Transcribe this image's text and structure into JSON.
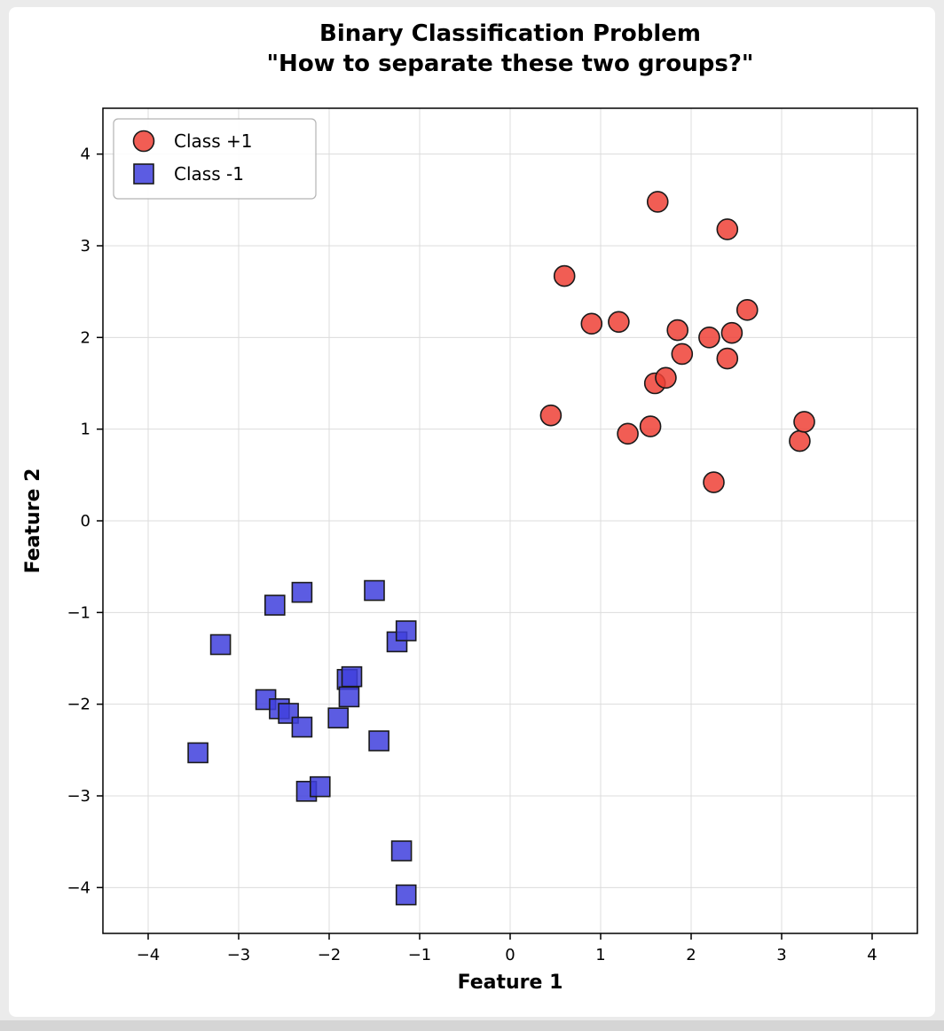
{
  "window": {
    "background": "#ebebeb",
    "figure_background": "#ffffff",
    "bottom_edge_color": "#d5d5d5"
  },
  "chart_data": {
    "type": "scatter",
    "title": "Binary Classification Problem",
    "subtitle": "\"How to separate these two groups?\"",
    "xlabel": "Feature 1",
    "ylabel": "Feature 2",
    "xlim": [
      -4.5,
      4.5
    ],
    "ylim": [
      -4.5,
      4.5
    ],
    "xticks": [
      -4,
      -3,
      -2,
      -1,
      0,
      1,
      2,
      3,
      4
    ],
    "yticks": [
      -4,
      -3,
      -2,
      -1,
      0,
      1,
      2,
      3,
      4
    ],
    "grid": true,
    "grid_color": "#dcdcdc",
    "legend": {
      "position": "upper left",
      "entries": [
        "Class +1",
        "Class -1"
      ]
    },
    "series": [
      {
        "name": "Class +1",
        "marker": "circle",
        "fill": "#ee4136",
        "fill_opacity": 0.85,
        "edge": "#1a1a1a",
        "points": [
          [
            0.45,
            1.15
          ],
          [
            0.6,
            2.67
          ],
          [
            0.9,
            2.15
          ],
          [
            1.2,
            2.17
          ],
          [
            1.3,
            0.95
          ],
          [
            1.55,
            1.03
          ],
          [
            1.63,
            3.48
          ],
          [
            1.6,
            1.5
          ],
          [
            1.72,
            1.56
          ],
          [
            1.85,
            2.08
          ],
          [
            1.9,
            1.82
          ],
          [
            2.2,
            2.0
          ],
          [
            2.25,
            0.42
          ],
          [
            2.4,
            3.18
          ],
          [
            2.4,
            1.77
          ],
          [
            2.45,
            2.05
          ],
          [
            2.62,
            2.3
          ],
          [
            3.2,
            0.87
          ],
          [
            3.25,
            1.08
          ]
        ]
      },
      {
        "name": "Class -1",
        "marker": "square",
        "fill": "#4040dd",
        "fill_opacity": 0.85,
        "edge": "#1a1a1a",
        "points": [
          [
            -3.45,
            -2.53
          ],
          [
            -3.2,
            -1.35
          ],
          [
            -2.7,
            -1.95
          ],
          [
            -2.6,
            -0.92
          ],
          [
            -2.55,
            -2.05
          ],
          [
            -2.45,
            -2.1
          ],
          [
            -2.3,
            -0.78
          ],
          [
            -2.3,
            -2.25
          ],
          [
            -2.25,
            -2.95
          ],
          [
            -2.1,
            -2.9
          ],
          [
            -1.9,
            -2.15
          ],
          [
            -1.8,
            -1.73
          ],
          [
            -1.75,
            -1.7
          ],
          [
            -1.78,
            -1.92
          ],
          [
            -1.5,
            -0.76
          ],
          [
            -1.45,
            -2.4
          ],
          [
            -1.25,
            -1.32
          ],
          [
            -1.15,
            -1.2
          ],
          [
            -1.2,
            -3.6
          ],
          [
            -1.15,
            -4.08
          ]
        ]
      }
    ]
  }
}
